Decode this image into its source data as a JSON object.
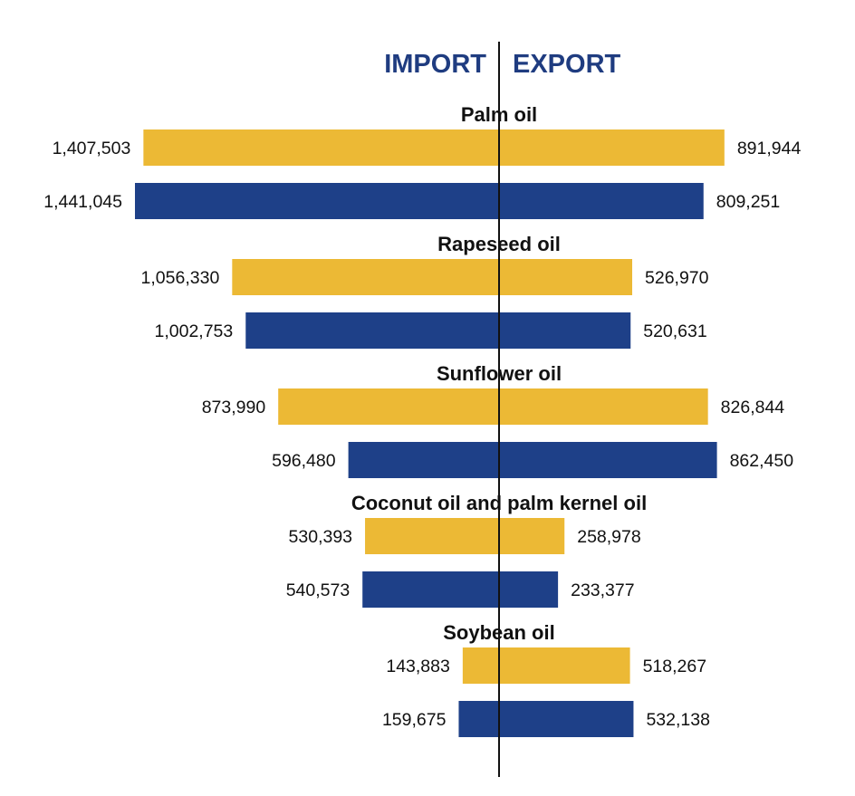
{
  "title": "",
  "header": {
    "import_label": "IMPORT",
    "export_label": "EXPORT"
  },
  "colors": {
    "series_a": "#ecb935",
    "series_b": "#1e4088",
    "header_text": "#1f3c80",
    "axis": "#111111"
  },
  "chart_data": {
    "type": "bar",
    "orientation": "horizontal-diverging",
    "directions": [
      "IMPORT",
      "EXPORT"
    ],
    "categories": [
      "Palm oil",
      "Rapeseed oil",
      "Sunflower oil",
      "Coconut oil and palm kernel oil",
      "Soybean oil"
    ],
    "series": [
      {
        "color": "#ecb935",
        "import": [
          1407503,
          1056330,
          873990,
          530393,
          143883
        ],
        "export": [
          891944,
          526970,
          826844,
          258978,
          518267
        ],
        "import_labels": [
          "1,407,503",
          "1,056,330",
          "873,990",
          "530,393",
          "143,883"
        ],
        "export_labels": [
          "891,944",
          "526,970",
          "826,844",
          "258,978",
          "518,267"
        ]
      },
      {
        "color": "#1e4088",
        "import": [
          1441045,
          1002753,
          596480,
          540573,
          159675
        ],
        "export": [
          809251,
          520631,
          862450,
          233377,
          532138
        ],
        "import_labels": [
          "1,441,045",
          "1,002,753",
          "596,480",
          "540,573",
          "159,675"
        ],
        "export_labels": [
          "809,251",
          "520,631",
          "862,450",
          "233,377",
          "532,138"
        ]
      }
    ],
    "legend": "none",
    "grid": false
  }
}
